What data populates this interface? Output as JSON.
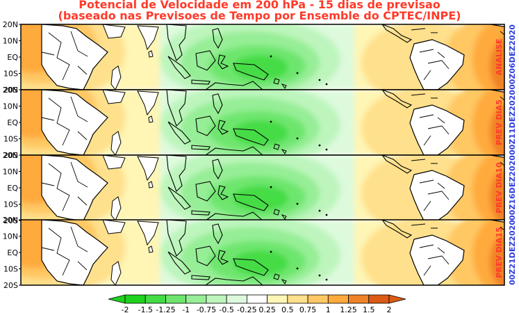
{
  "title": {
    "line1": "Potencial de Velocidade em 200 hPa - 15 dias de previsao",
    "line2": "(baseado nas Previsoes de Tempo por Ensemble do CPTEC/INPE)"
  },
  "lat_labels": [
    "20N",
    "10N",
    "EQ",
    "10S",
    "20S"
  ],
  "panels": [
    {
      "name": "analise",
      "label": "ANALISE",
      "date": "00Z06DEZ2020"
    },
    {
      "name": "dia5",
      "label": "PREV DIA5",
      "date": "00Z11DEZ2020"
    },
    {
      "name": "dia10",
      "label": "PREV DIA10",
      "date": "00Z16DEZ2020"
    },
    {
      "name": "dia15",
      "label": "PREV DIA15",
      "date": "00Z21DEZ2020"
    }
  ],
  "colors": {
    "title": "#ff3a2a",
    "panel_label": "#ff3a2a",
    "panel_date": "#2f3fe0"
  },
  "colorbar": {
    "labels": [
      "-2",
      "-1.5",
      "-1.25",
      "-1",
      "-0.75",
      "-0.5",
      "-0.25",
      "0.25",
      "0.5",
      "0.75",
      "1",
      "1.25",
      "1.5",
      "2"
    ],
    "colors": [
      "#1ed21e",
      "#44dc44",
      "#6ee66e",
      "#96ee96",
      "#bdf5bd",
      "#ddfadd",
      "#ffffff",
      "#fff5b4",
      "#ffe08c",
      "#ffc864",
      "#ffaa3c",
      "#f08228",
      "#dc5a14"
    ]
  }
}
